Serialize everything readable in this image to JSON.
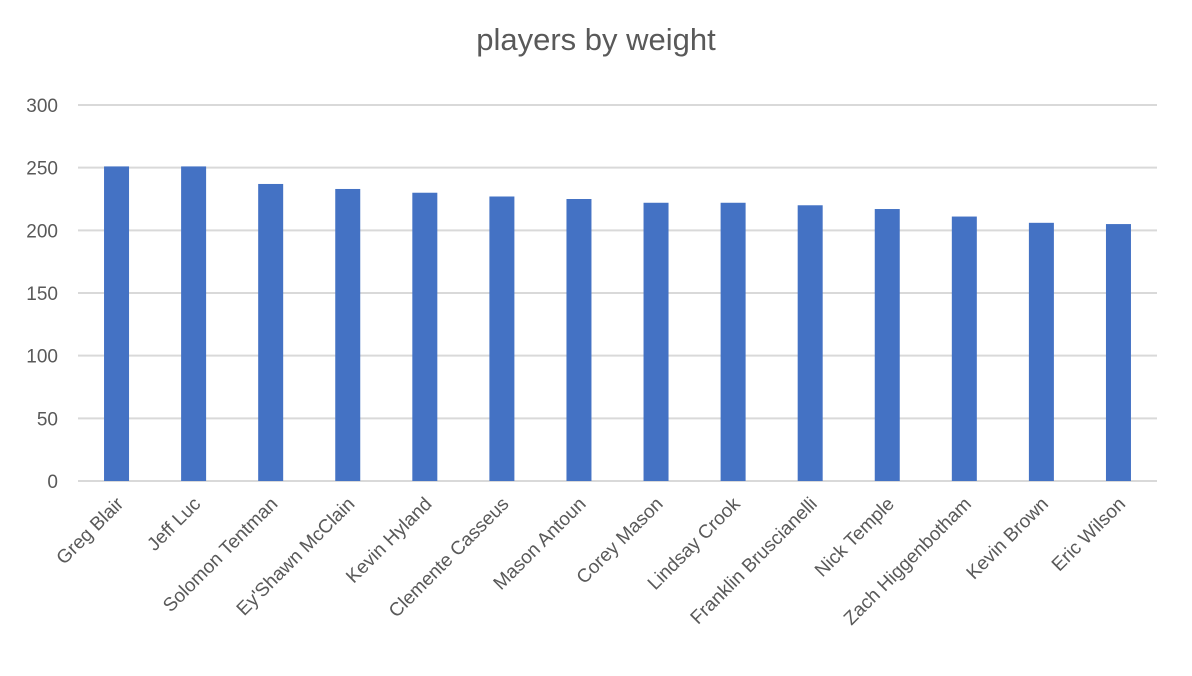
{
  "chart_data": {
    "type": "bar",
    "title": "players by weight",
    "xlabel": "",
    "ylabel": "",
    "categories": [
      "Greg Blair",
      "Jeff Luc",
      "Solomon Tentman",
      "Ey'Shawn McClain",
      "Kevin Hyland",
      "Clemente Casseus",
      "Mason Antoun",
      "Corey Mason",
      "Lindsay Crook",
      "Franklin Bruscianelli",
      "Nick Temple",
      "Zach Higgenbotham",
      "Kevin Brown",
      "Eric Wilson"
    ],
    "values": [
      251,
      251,
      237,
      233,
      230,
      227,
      225,
      222,
      222,
      220,
      217,
      211,
      206,
      205
    ],
    "ylim": [
      0,
      300
    ],
    "yticks": [
      0,
      50,
      100,
      150,
      200,
      250,
      300
    ],
    "grid": true,
    "legend": "none",
    "colors": {
      "bar": "#4472c4",
      "grid": "#d9d9d9",
      "text": "#595959"
    }
  }
}
